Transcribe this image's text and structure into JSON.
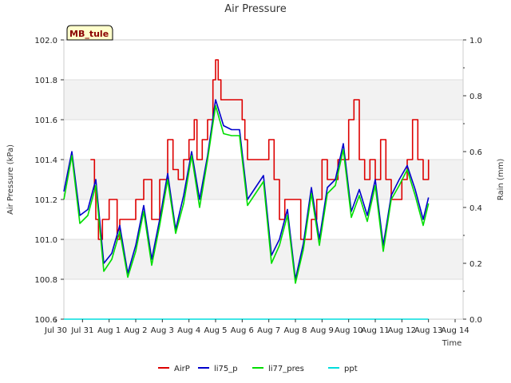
{
  "chart_data": {
    "type": "line",
    "title": "Air Pressure",
    "xlabel": "Time",
    "ylabel": "Air Pressure (kPa)",
    "y2label": "Rain (mm)",
    "site_label": "MB_tule",
    "ylim": [
      100.6,
      102.0
    ],
    "y2lim": [
      0.0,
      1.0
    ],
    "xlim": [
      0,
      15
    ],
    "y_ticks": [
      "100.6",
      "100.8",
      "101.0",
      "101.2",
      "101.4",
      "101.6",
      "101.8",
      "102.0"
    ],
    "y2_ticks": [
      "0.0",
      "0.2",
      "0.4",
      "0.6",
      "0.8",
      "1.0"
    ],
    "x_ticks": [
      "Jul 30",
      "Jul 31",
      "Aug 1",
      "Aug 2",
      "Aug 3",
      "Aug 4",
      "Aug 5",
      "Aug 6",
      "Aug 7",
      "Aug 8",
      "Aug 9",
      "Aug 10",
      "Aug 11",
      "Aug 12",
      "Aug 13",
      "Aug 14"
    ],
    "grid": true,
    "legend_position": "bottom",
    "series": [
      {
        "name": "AirP",
        "color": "#dd0000",
        "axis": "left",
        "x": [
          1.3,
          1.45,
          1.5,
          1.6,
          1.75,
          2.0,
          2.3,
          2.4,
          2.7,
          3.0,
          3.3,
          3.6,
          3.9,
          4.2,
          4.4,
          4.6,
          4.8,
          5.0,
          5.2,
          5.3,
          5.5,
          5.7,
          5.9,
          6.0,
          6.1,
          6.2,
          6.3,
          6.5,
          6.8,
          7.0,
          7.1,
          7.2,
          7.4,
          7.6,
          7.8,
          8.0,
          8.2,
          8.4,
          8.6,
          8.8,
          9.0,
          9.2,
          9.4,
          9.6,
          9.8,
          10.0,
          10.2,
          10.4,
          10.6,
          10.8,
          11.0,
          11.2,
          11.4,
          11.6,
          11.8,
          12.0,
          12.2,
          12.4,
          12.6,
          12.8,
          13.0,
          13.2,
          13.4,
          13.6,
          13.8,
          14.0
        ],
        "values": [
          101.4,
          101.25,
          101.1,
          101.0,
          101.1,
          101.2,
          101.0,
          101.1,
          101.1,
          101.2,
          101.3,
          101.1,
          101.3,
          101.5,
          101.35,
          101.3,
          101.4,
          101.5,
          101.6,
          101.4,
          101.5,
          101.6,
          101.8,
          101.9,
          101.8,
          101.7,
          101.7,
          101.7,
          101.7,
          101.6,
          101.5,
          101.4,
          101.4,
          101.4,
          101.4,
          101.5,
          101.3,
          101.1,
          101.2,
          101.2,
          101.2,
          101.0,
          101.0,
          101.1,
          101.2,
          101.4,
          101.3,
          101.3,
          101.4,
          101.4,
          101.6,
          101.7,
          101.4,
          101.3,
          101.4,
          101.3,
          101.5,
          101.3,
          101.2,
          101.2,
          101.3,
          101.4,
          101.6,
          101.4,
          101.3,
          101.4
        ]
      },
      {
        "name": "li75_p",
        "color": "#0000cc",
        "axis": "left",
        "x": [
          0.3,
          0.6,
          0.9,
          1.2,
          1.5,
          1.8,
          2.1,
          2.4,
          2.7,
          3.0,
          3.3,
          3.6,
          3.9,
          4.2,
          4.5,
          4.8,
          5.1,
          5.4,
          5.7,
          6.0,
          6.3,
          6.6,
          6.9,
          7.2,
          7.5,
          7.8,
          8.1,
          8.4,
          8.7,
          9.0,
          9.3,
          9.6,
          9.9,
          10.2,
          10.5,
          10.8,
          11.1,
          11.4,
          11.7,
          12.0,
          12.3,
          12.6,
          12.9,
          13.2,
          13.5,
          13.8,
          14.0
        ],
        "values": [
          101.24,
          101.44,
          101.12,
          101.15,
          101.3,
          100.88,
          100.93,
          101.07,
          100.83,
          100.97,
          101.17,
          100.9,
          101.1,
          101.33,
          101.05,
          101.22,
          101.44,
          101.2,
          101.42,
          101.7,
          101.57,
          101.55,
          101.55,
          101.2,
          101.26,
          101.32,
          100.92,
          101.0,
          101.15,
          100.8,
          100.98,
          101.26,
          101.0,
          101.26,
          101.3,
          101.48,
          101.14,
          101.25,
          101.12,
          101.3,
          100.97,
          101.22,
          101.3,
          101.37,
          101.25,
          101.1,
          101.21
        ]
      },
      {
        "name": "li77_pres",
        "color": "#00dd00",
        "axis": "left",
        "x": [
          0.3,
          0.6,
          0.9,
          1.2,
          1.5,
          1.8,
          2.1,
          2.4,
          2.7,
          3.0,
          3.3,
          3.6,
          3.9,
          4.2,
          4.5,
          4.8,
          5.1,
          5.4,
          5.7,
          6.0,
          6.3,
          6.6,
          6.9,
          7.2,
          7.5,
          7.8,
          8.1,
          8.4,
          8.7,
          9.0,
          9.3,
          9.6,
          9.9,
          10.2,
          10.5,
          10.8,
          11.1,
          11.4,
          11.7,
          12.0,
          12.3,
          12.6,
          12.9,
          13.2,
          13.5,
          13.8,
          14.0
        ],
        "values": [
          101.2,
          101.42,
          101.08,
          101.12,
          101.27,
          100.84,
          100.9,
          101.04,
          100.81,
          100.94,
          101.14,
          100.87,
          101.07,
          101.3,
          101.03,
          101.18,
          101.42,
          101.16,
          101.4,
          101.67,
          101.53,
          101.52,
          101.52,
          101.17,
          101.23,
          101.29,
          100.88,
          100.97,
          101.12,
          100.78,
          100.95,
          101.23,
          100.97,
          101.23,
          101.27,
          101.45,
          101.11,
          101.22,
          101.09,
          101.27,
          100.94,
          101.2,
          101.27,
          101.35,
          101.22,
          101.07,
          101.18
        ]
      },
      {
        "name": "ppt",
        "color": "#00dddd",
        "axis": "right",
        "x": [
          0.3,
          14.0
        ],
        "values": [
          0.0,
          0.0
        ]
      }
    ]
  }
}
